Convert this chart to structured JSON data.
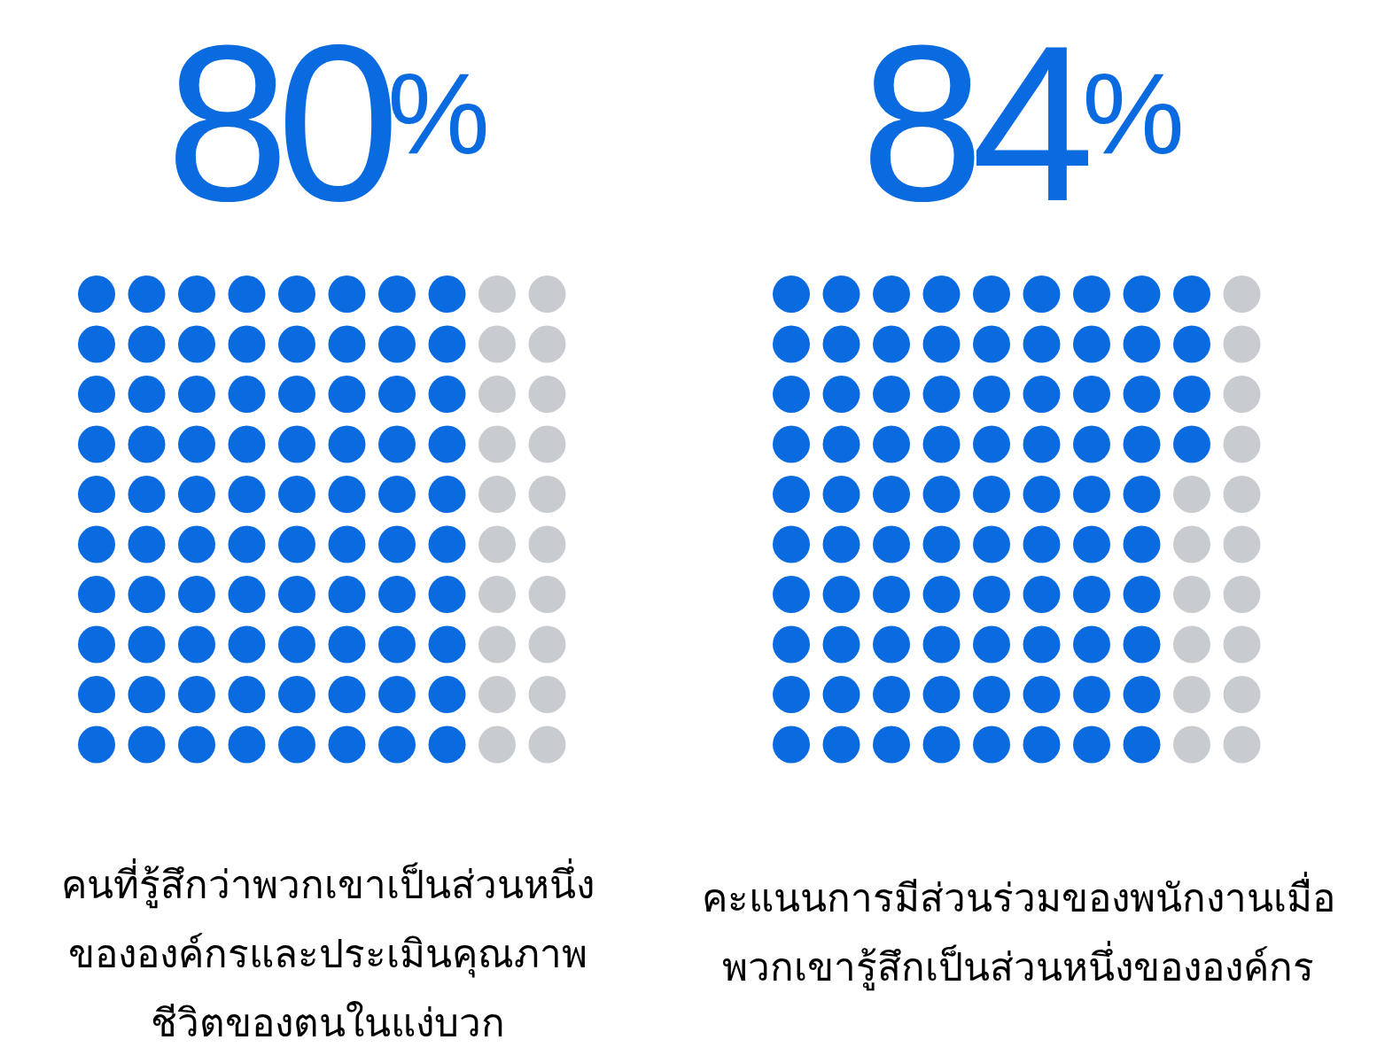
{
  "chart_data": [
    {
      "type": "other",
      "values": [
        80
      ],
      "color": "#0a6be0",
      "value_labels": [
        "80$^{%}$"
      ],
      "annotations": [
        "คนที่รู้สึกว่าพวกเขาเป็นส่วนหนึ่งขององค์กรและประเมินคุณภาพชีวิตของตนในแง่บวก"
      ]
    },
    {
      "type": "other",
      "values": [
        84
      ],
      "color": "#0a6be0",
      "value_labels": [
        "84$^{%}$"
      ],
      "annotations": [
        "คะแนนการมีส่วนร่วมของพนักงานเมื่อพวกเขารู้สึกเป็นส่วนหนึ่งขององค์กร"
      ]
    }
  ]
}
